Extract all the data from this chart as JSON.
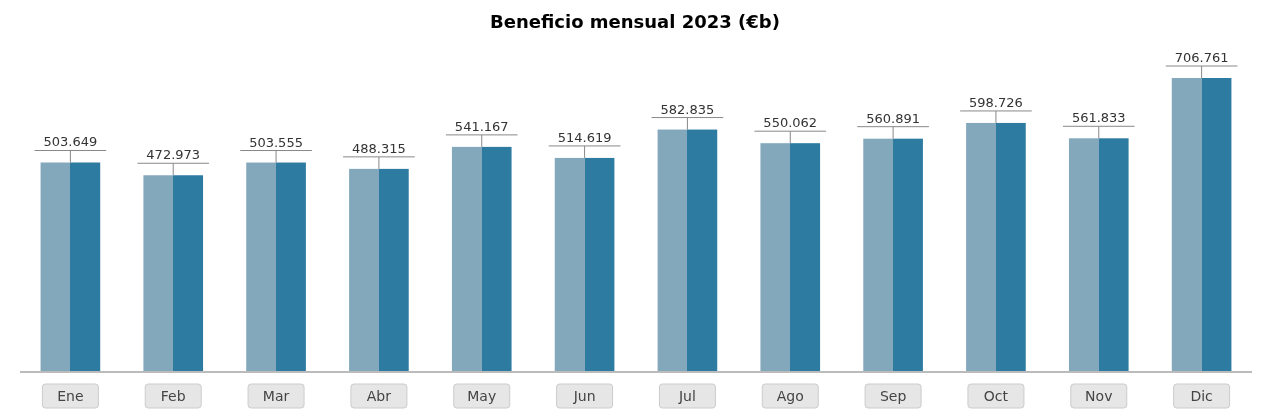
{
  "chart_data": {
    "type": "bar",
    "title": "Beneficio mensual 2023 (€b)",
    "categories": [
      "Ene",
      "Feb",
      "Mar",
      "Abr",
      "May",
      "Jun",
      "Jul",
      "Ago",
      "Sep",
      "Oct",
      "Nov",
      "Dic"
    ],
    "values": [
      503.649,
      472.973,
      503.555,
      488.315,
      541.167,
      514.619,
      582.835,
      550.062,
      560.891,
      598.726,
      561.833,
      706.761
    ],
    "color": "#2e7ba1",
    "data_labels": true
  }
}
